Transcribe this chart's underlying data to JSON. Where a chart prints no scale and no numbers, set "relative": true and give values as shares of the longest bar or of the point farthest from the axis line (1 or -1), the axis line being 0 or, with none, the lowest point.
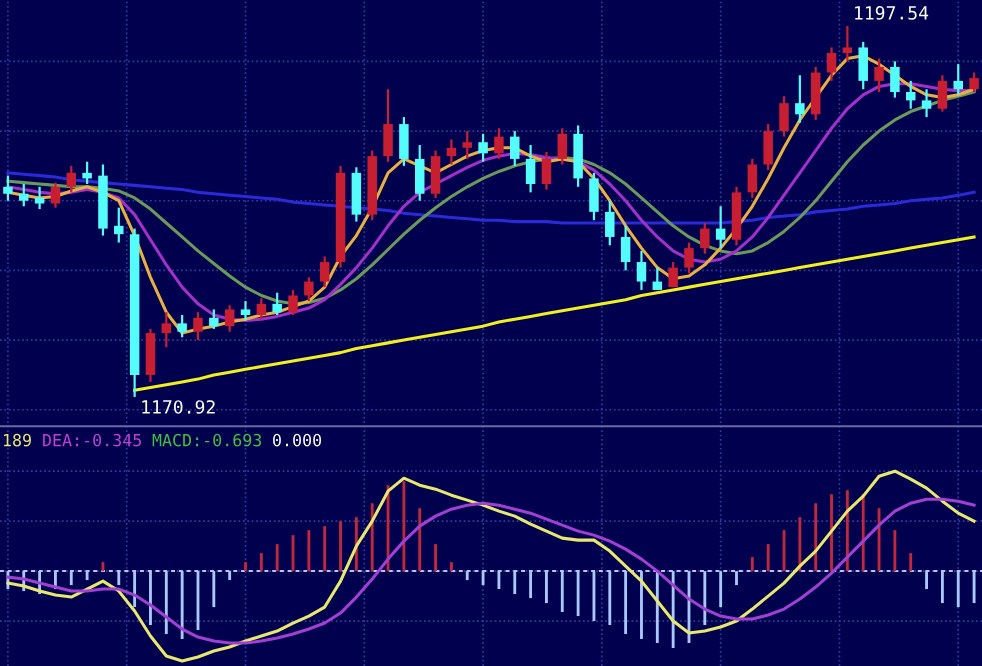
{
  "chart_data": [
    {
      "type": "candlestick",
      "categories": [
        null,
        null,
        null,
        null,
        null,
        null,
        null,
        null,
        null,
        null,
        null,
        null,
        null,
        null,
        null,
        null,
        null,
        null,
        null,
        null,
        null,
        null,
        null,
        null,
        null,
        null,
        null,
        null,
        null,
        null,
        null,
        null,
        null,
        null,
        null,
        null,
        null,
        null,
        null,
        null,
        null,
        null,
        null,
        null,
        null,
        null,
        null,
        null,
        null,
        null,
        null,
        null,
        null,
        null,
        null,
        null,
        null,
        null,
        null,
        null,
        null,
        null
      ],
      "ohlc": [
        [
          1186.0,
          1186.8,
          1185.0,
          1185.5
        ],
        [
          1185.5,
          1186.2,
          1184.6,
          1185.0
        ],
        [
          1185.2,
          1186.0,
          1184.4,
          1184.8
        ],
        [
          1184.8,
          1186.3,
          1184.5,
          1186.0
        ],
        [
          1186.0,
          1187.5,
          1185.6,
          1187.0
        ],
        [
          1187.0,
          1187.8,
          1186.2,
          1186.6
        ],
        [
          1186.8,
          1187.6,
          1182.5,
          1183.0
        ],
        [
          1183.2,
          1184.5,
          1182.0,
          1182.6
        ],
        [
          1182.6,
          1183.0,
          1170.92,
          1172.5
        ],
        [
          1172.5,
          1175.8,
          1172.0,
          1175.5
        ],
        [
          1175.5,
          1177.0,
          1174.5,
          1176.2
        ],
        [
          1176.2,
          1176.8,
          1175.2,
          1175.6
        ],
        [
          1175.6,
          1177.0,
          1175.0,
          1176.6
        ],
        [
          1176.6,
          1177.2,
          1175.8,
          1176.0
        ],
        [
          1176.0,
          1177.5,
          1175.6,
          1177.2
        ],
        [
          1177.2,
          1177.8,
          1176.4,
          1176.8
        ],
        [
          1176.8,
          1178.0,
          1176.5,
          1177.6
        ],
        [
          1177.6,
          1178.4,
          1176.8,
          1177.0
        ],
        [
          1177.0,
          1178.6,
          1176.8,
          1178.2
        ],
        [
          1178.2,
          1179.5,
          1177.8,
          1179.2
        ],
        [
          1179.2,
          1181.0,
          1178.8,
          1180.6
        ],
        [
          1180.6,
          1187.5,
          1180.2,
          1187.0
        ],
        [
          1187.0,
          1187.4,
          1183.5,
          1184.0
        ],
        [
          1184.0,
          1188.6,
          1183.6,
          1188.2
        ],
        [
          1188.2,
          1193.0,
          1187.8,
          1190.5
        ],
        [
          1190.5,
          1191.0,
          1187.5,
          1188.0
        ],
        [
          1188.0,
          1189.0,
          1185.0,
          1185.5
        ],
        [
          1185.5,
          1188.6,
          1185.2,
          1188.2
        ],
        [
          1188.2,
          1189.4,
          1187.6,
          1188.8
        ],
        [
          1188.8,
          1190.0,
          1188.0,
          1189.2
        ],
        [
          1189.2,
          1189.8,
          1187.8,
          1188.4
        ],
        [
          1188.4,
          1190.2,
          1188.0,
          1189.6
        ],
        [
          1189.6,
          1190.0,
          1187.5,
          1188.0
        ],
        [
          1188.0,
          1189.0,
          1185.6,
          1186.2
        ],
        [
          1186.2,
          1188.5,
          1185.8,
          1188.0
        ],
        [
          1188.0,
          1190.2,
          1187.6,
          1189.8
        ],
        [
          1189.8,
          1190.4,
          1186.0,
          1186.6
        ],
        [
          1186.6,
          1187.0,
          1183.6,
          1184.2
        ],
        [
          1184.2,
          1185.0,
          1181.8,
          1182.4
        ],
        [
          1182.4,
          1183.2,
          1180.0,
          1180.6
        ],
        [
          1180.6,
          1181.4,
          1178.6,
          1179.2
        ],
        [
          1179.2,
          1180.2,
          1178.6,
          1178.6
        ],
        [
          1178.8,
          1180.6,
          1178.8,
          1180.2
        ],
        [
          1180.2,
          1182.0,
          1179.8,
          1181.6
        ],
        [
          1181.6,
          1183.4,
          1181.2,
          1183.0
        ],
        [
          1183.0,
          1184.6,
          1181.6,
          1182.2
        ],
        [
          1182.2,
          1186.0,
          1181.8,
          1185.6
        ],
        [
          1185.6,
          1188.0,
          1185.2,
          1187.6
        ],
        [
          1187.6,
          1190.5,
          1187.2,
          1190.0
        ],
        [
          1190.0,
          1192.5,
          1189.6,
          1192.0
        ],
        [
          1192.0,
          1194.0,
          1190.6,
          1191.2
        ],
        [
          1191.2,
          1194.6,
          1190.8,
          1194.2
        ],
        [
          1194.2,
          1196.0,
          1193.6,
          1195.6
        ],
        [
          1195.6,
          1197.54,
          1195.0,
          1196.0
        ],
        [
          1196.0,
          1196.4,
          1193.0,
          1193.6
        ],
        [
          1193.6,
          1195.2,
          1192.8,
          1194.6
        ],
        [
          1194.6,
          1195.0,
          1192.4,
          1192.8
        ],
        [
          1192.8,
          1193.6,
          1191.6,
          1192.2
        ],
        [
          1192.2,
          1193.0,
          1191.0,
          1191.6
        ],
        [
          1191.6,
          1194.0,
          1191.4,
          1193.6
        ],
        [
          1193.6,
          1194.8,
          1192.6,
          1193.0
        ],
        [
          1193.0,
          1194.2,
          1192.8,
          1193.8
        ]
      ],
      "colors": [
        "#54fcfc",
        "#54fcfc",
        "#54fcfc",
        "#c81e32",
        "#c81e32",
        "#54fcfc",
        "#54fcfc",
        "#54fcfc",
        "#54fcfc",
        "#c81e32",
        "#c81e32",
        "#54fcfc",
        "#c81e32",
        "#54fcfc",
        "#c81e32",
        "#54fcfc",
        "#c81e32",
        "#54fcfc",
        "#c81e32",
        "#c81e32",
        "#c81e32",
        "#c81e32",
        "#54fcfc",
        "#c81e32",
        "#c81e32",
        "#54fcfc",
        "#54fcfc",
        "#c81e32",
        "#c81e32",
        "#c81e32",
        "#54fcfc",
        "#c81e32",
        "#54fcfc",
        "#54fcfc",
        "#c81e32",
        "#c81e32",
        "#54fcfc",
        "#54fcfc",
        "#54fcfc",
        "#54fcfc",
        "#54fcfc",
        "#54fcfc",
        "#c81e32",
        "#c81e32",
        "#c81e32",
        "#54fcfc",
        "#c81e32",
        "#c81e32",
        "#c81e32",
        "#c81e32",
        "#54fcfc",
        "#c81e32",
        "#c81e32",
        "#c81e32",
        "#54fcfc",
        "#c81e32",
        "#54fcfc",
        "#54fcfc",
        "#54fcfc",
        "#c81e32",
        "#54fcfc",
        "#c81e32"
      ],
      "series": [
        {
          "type": "line",
          "color": "#2a2ad8",
          "values": [
            1187.0,
            1186.9,
            1186.8,
            1186.7,
            1186.5,
            1186.4,
            1186.3,
            1186.2,
            1186.1,
            1186.0,
            1185.9,
            1185.8,
            1185.6,
            1185.5,
            1185.4,
            1185.3,
            1185.2,
            1185.1,
            1184.9,
            1184.8,
            1184.7,
            1184.6,
            1184.5,
            1184.4,
            1184.3,
            1184.1,
            1184.0,
            1183.9,
            1183.8,
            1183.7,
            1183.6,
            1183.6,
            1183.5,
            1183.5,
            1183.5,
            1183.4,
            1183.4,
            1183.4,
            1183.4,
            1183.4,
            1183.4,
            1183.4,
            1183.4,
            1183.4,
            1183.4,
            1183.4,
            1183.5,
            1183.6,
            1183.8,
            1183.9,
            1184.0,
            1184.2,
            1184.3,
            1184.4,
            1184.6,
            1184.7,
            1184.8,
            1185.0,
            1185.1,
            1185.2,
            1185.4,
            1185.6
          ]
        },
        {
          "type": "line",
          "color": "#6a9a5a",
          "values": [
            1186.4,
            1186.3,
            1186.2,
            1186.1,
            1186.0,
            1186.0,
            1185.9,
            1185.7,
            1185.2,
            1184.4,
            1183.4,
            1182.4,
            1181.4,
            1180.5,
            1179.6,
            1178.8,
            1178.2,
            1177.8,
            1177.6,
            1177.7,
            1178.0,
            1178.6,
            1179.4,
            1180.4,
            1181.5,
            1182.6,
            1183.6,
            1184.5,
            1185.3,
            1186.0,
            1186.6,
            1187.1,
            1187.5,
            1187.8,
            1188.0,
            1188.1,
            1188.0,
            1187.6,
            1187.0,
            1186.2,
            1185.2,
            1184.2,
            1183.2,
            1182.4,
            1181.8,
            1181.4,
            1181.2,
            1181.4,
            1182.0,
            1182.8,
            1183.8,
            1185.0,
            1186.4,
            1187.8,
            1189.0,
            1190.0,
            1190.8,
            1191.4,
            1191.8,
            1192.2,
            1192.5,
            1192.8
          ]
        },
        {
          "type": "line",
          "color": "#a030c8",
          "values": [
            1186.0,
            1185.8,
            1185.6,
            1185.5,
            1185.6,
            1185.8,
            1185.6,
            1185.2,
            1184.0,
            1182.2,
            1180.4,
            1178.8,
            1177.6,
            1176.8,
            1176.5,
            1176.4,
            1176.5,
            1176.7,
            1177.0,
            1177.3,
            1177.9,
            1179.0,
            1180.2,
            1181.6,
            1183.2,
            1184.6,
            1185.6,
            1186.2,
            1186.8,
            1187.4,
            1187.9,
            1188.2,
            1188.4,
            1188.3,
            1188.1,
            1188.0,
            1187.8,
            1187.2,
            1186.2,
            1185.0,
            1183.6,
            1182.4,
            1181.4,
            1180.8,
            1180.6,
            1180.8,
            1181.4,
            1182.4,
            1183.8,
            1185.4,
            1187.0,
            1188.6,
            1190.2,
            1191.6,
            1192.6,
            1193.2,
            1193.4,
            1193.4,
            1193.2,
            1193.0,
            1192.9,
            1192.9
          ]
        },
        {
          "type": "line",
          "color": "#e8b040",
          "values": [
            1185.6,
            1185.4,
            1185.2,
            1185.3,
            1185.7,
            1186.0,
            1185.6,
            1185.0,
            1182.5,
            1179.5,
            1177.0,
            1175.5,
            1175.8,
            1176.0,
            1176.3,
            1176.5,
            1176.8,
            1177.0,
            1177.4,
            1177.8,
            1178.8,
            1181.0,
            1182.5,
            1184.5,
            1187.0,
            1188.0,
            1187.5,
            1187.0,
            1187.6,
            1188.2,
            1188.6,
            1188.8,
            1188.8,
            1188.2,
            1187.8,
            1188.0,
            1187.8,
            1186.6,
            1185.0,
            1183.2,
            1181.6,
            1180.2,
            1179.4,
            1179.6,
            1180.4,
            1181.6,
            1183.0,
            1184.6,
            1186.6,
            1188.8,
            1190.8,
            1192.4,
            1194.0,
            1195.2,
            1195.4,
            1194.8,
            1194.0,
            1193.2,
            1192.6,
            1192.4,
            1192.6,
            1193.0
          ]
        },
        {
          "type": "line",
          "color": "#f0f020",
          "values": [
            null,
            null,
            null,
            null,
            null,
            null,
            null,
            null,
            1171.4,
            1171.6,
            1171.8,
            1172.0,
            1172.2,
            1172.5,
            1172.7,
            1172.9,
            1173.1,
            1173.3,
            1173.5,
            1173.7,
            1173.9,
            1174.1,
            1174.4,
            1174.6,
            1174.8,
            1175.0,
            1175.2,
            1175.4,
            1175.6,
            1175.8,
            1176.0,
            1176.3,
            1176.5,
            1176.7,
            1176.9,
            1177.1,
            1177.3,
            1177.5,
            1177.7,
            1177.9,
            1178.2,
            1178.4,
            1178.6,
            1178.8,
            1179.0,
            1179.2,
            1179.4,
            1179.6,
            1179.8,
            1180.0,
            1180.2,
            1180.4,
            1180.6,
            1180.8,
            1181.0,
            1181.2,
            1181.4,
            1181.6,
            1181.8,
            1182.0,
            1182.2,
            1182.4
          ]
        }
      ],
      "annotations": [
        "1197.54",
        "1170.92"
      ],
      "grid": true,
      "tick_labels": false
    },
    {
      "type": "bar",
      "relative": true,
      "categories": [
        null,
        null,
        null,
        null,
        null,
        null,
        null,
        null,
        null,
        null,
        null,
        null,
        null,
        null,
        null,
        null,
        null,
        null,
        null,
        null,
        null,
        null,
        null,
        null,
        null,
        null,
        null,
        null,
        null,
        null,
        null,
        null,
        null,
        null,
        null,
        null,
        null,
        null,
        null,
        null,
        null,
        null,
        null,
        null,
        null,
        null,
        null,
        null,
        null,
        null,
        null,
        null,
        null,
        null,
        null,
        null,
        null,
        null,
        null,
        null,
        null,
        null
      ],
      "series": [
        {
          "type": "bar",
          "colors": [
            "#a8c8ff",
            "#a8c8ff",
            "#a8c8ff",
            "#a8c8ff",
            "#a8c8ff",
            "#a8c8ff",
            "#c0283c",
            "#a8c8ff",
            "#a8c8ff",
            "#a8c8ff",
            "#a8c8ff",
            "#a8c8ff",
            "#a8c8ff",
            "#a8c8ff",
            "#a8c8ff",
            "#c0283c",
            "#c0283c",
            "#c0283c",
            "#c0283c",
            "#c0283c",
            "#c0283c",
            "#c0283c",
            "#c0283c",
            "#c0283c",
            "#c0283c",
            "#c0283c",
            "#c0283c",
            "#c0283c",
            "#c0283c",
            "#a8c8ff",
            "#a8c8ff",
            "#a8c8ff",
            "#a8c8ff",
            "#a8c8ff",
            "#a8c8ff",
            "#a8c8ff",
            "#a8c8ff",
            "#a8c8ff",
            "#a8c8ff",
            "#a8c8ff",
            "#a8c8ff",
            "#a8c8ff",
            "#a8c8ff",
            "#a8c8ff",
            "#a8c8ff",
            "#a8c8ff",
            "#a8c8ff",
            "#c0283c",
            "#c0283c",
            "#c0283c",
            "#c0283c",
            "#c0283c",
            "#c0283c",
            "#c0283c",
            "#c0283c",
            "#c0283c",
            "#c0283c",
            "#c0283c",
            "#a8c8ff",
            "#a8c8ff",
            "#a8c8ff",
            "#a8c8ff"
          ],
          "values": [
            -0.18,
            -0.2,
            -0.23,
            -0.18,
            -0.14,
            -0.09,
            0.09,
            -0.14,
            -0.36,
            -0.54,
            -0.63,
            -0.68,
            -0.59,
            -0.36,
            -0.09,
            0.09,
            0.18,
            0.27,
            0.36,
            0.41,
            0.45,
            0.5,
            0.54,
            0.68,
            0.86,
            0.9,
            0.63,
            0.27,
            0.09,
            -0.09,
            -0.14,
            -0.18,
            -0.23,
            -0.27,
            -0.32,
            -0.41,
            -0.45,
            -0.5,
            -0.54,
            -0.63,
            -0.68,
            -0.72,
            -0.77,
            -0.72,
            -0.54,
            -0.36,
            -0.14,
            0.14,
            0.27,
            0.41,
            0.54,
            0.68,
            0.77,
            0.81,
            0.77,
            0.63,
            0.41,
            0.18,
            -0.18,
            -0.32,
            -0.36,
            -0.32
          ]
        },
        {
          "type": "line",
          "color": "#e8e870",
          "values": [
            -0.12,
            -0.15,
            -0.2,
            -0.24,
            -0.26,
            -0.18,
            -0.1,
            -0.2,
            -0.4,
            -0.65,
            -0.85,
            -0.9,
            -0.86,
            -0.8,
            -0.76,
            -0.7,
            -0.65,
            -0.6,
            -0.52,
            -0.45,
            -0.36,
            -0.1,
            0.25,
            0.5,
            0.8,
            0.93,
            0.86,
            0.82,
            0.76,
            0.71,
            0.66,
            0.6,
            0.55,
            0.47,
            0.4,
            0.33,
            0.31,
            0.31,
            0.2,
            0.05,
            -0.1,
            -0.3,
            -0.5,
            -0.62,
            -0.6,
            -0.56,
            -0.5,
            -0.38,
            -0.25,
            -0.12,
            0.05,
            0.2,
            0.4,
            0.6,
            0.75,
            0.95,
            1.0,
            0.92,
            0.83,
            0.7,
            0.58,
            0.5
          ]
        },
        {
          "type": "line",
          "color": "#a040d0",
          "values": [
            -0.06,
            -0.08,
            -0.12,
            -0.16,
            -0.2,
            -0.2,
            -0.18,
            -0.18,
            -0.24,
            -0.34,
            -0.46,
            -0.58,
            -0.66,
            -0.7,
            -0.72,
            -0.72,
            -0.7,
            -0.67,
            -0.63,
            -0.58,
            -0.52,
            -0.42,
            -0.26,
            -0.08,
            0.12,
            0.3,
            0.45,
            0.55,
            0.62,
            0.66,
            0.68,
            0.66,
            0.62,
            0.58,
            0.52,
            0.46,
            0.4,
            0.36,
            0.3,
            0.22,
            0.12,
            0.0,
            -0.14,
            -0.28,
            -0.38,
            -0.45,
            -0.48,
            -0.48,
            -0.44,
            -0.38,
            -0.28,
            -0.16,
            -0.02,
            0.14,
            0.3,
            0.46,
            0.6,
            0.68,
            0.72,
            0.72,
            0.7,
            0.66
          ]
        }
      ],
      "annotations": [
        "189",
        "DEA:-0.345",
        "MACD:-0.693",
        "0.000"
      ],
      "ref_lines": [
        {
          "axis": "y",
          "value": 0,
          "color": "#c0c0ff",
          "line_style": "dashed"
        }
      ],
      "grid": true,
      "tick_labels": false
    }
  ]
}
